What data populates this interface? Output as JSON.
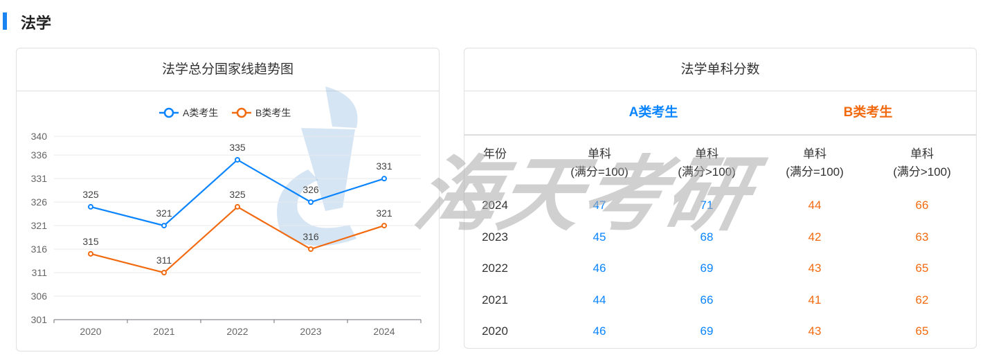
{
  "section_title": "法学",
  "watermark": "海天考研",
  "colors": {
    "a": "#0a84ff",
    "b": "#f26a10",
    "accent": "#1a84f0"
  },
  "chart_card": {
    "title": "法学总分国家线趋势图"
  },
  "chart_data": {
    "type": "line",
    "title": "法学总分国家线趋势图",
    "categories": [
      "2020",
      "2021",
      "2022",
      "2023",
      "2024"
    ],
    "series": [
      {
        "name": "A类考生",
        "values": [
          325,
          321,
          335,
          326,
          331
        ],
        "color": "#0a84ff"
      },
      {
        "name": "B类考生",
        "values": [
          315,
          311,
          325,
          316,
          321
        ],
        "color": "#f26a10"
      }
    ],
    "yticks": [
      340,
      336,
      331,
      326,
      321,
      316,
      311,
      306,
      301
    ],
    "ylim": [
      301,
      340
    ],
    "grid": true,
    "legend": "top-center",
    "data_labels": true
  },
  "table_card": {
    "title": "法学单科分数",
    "group_a": "A类考生",
    "group_b": "B类考生",
    "headers": [
      "年份",
      "单科\n(满分=100)",
      "单科\n(满分>100)",
      "单科\n(满分=100)",
      "单科\n(满分>100)"
    ],
    "rows": [
      [
        "2024",
        "47",
        "71",
        "44",
        "66"
      ],
      [
        "2023",
        "45",
        "68",
        "42",
        "63"
      ],
      [
        "2022",
        "46",
        "69",
        "43",
        "65"
      ],
      [
        "2021",
        "44",
        "66",
        "41",
        "62"
      ],
      [
        "2020",
        "46",
        "69",
        "43",
        "65"
      ]
    ]
  }
}
